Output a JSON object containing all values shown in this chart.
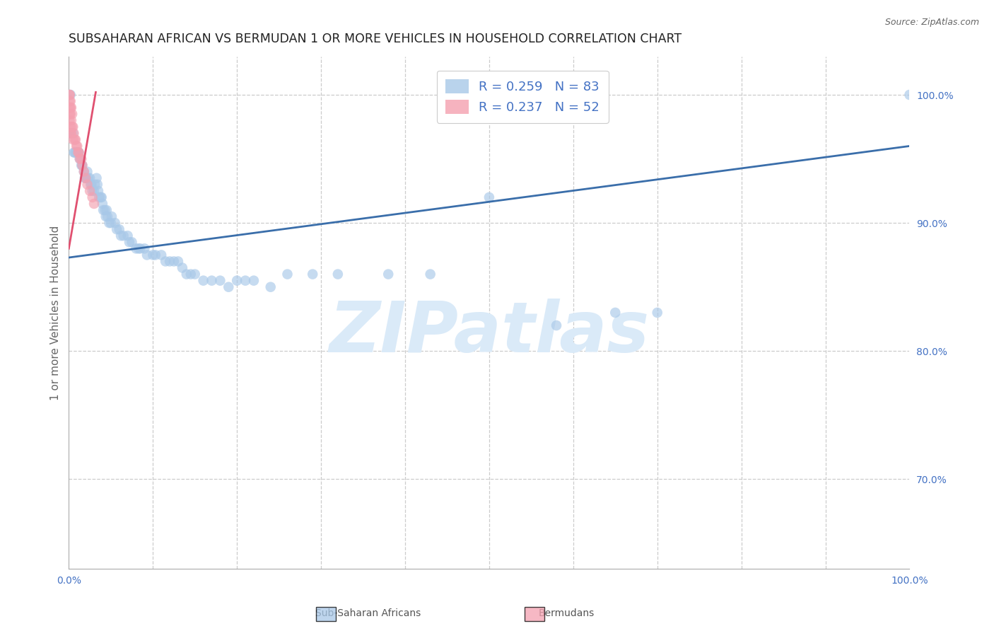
{
  "title": "SUBSAHARAN AFRICAN VS BERMUDAN 1 OR MORE VEHICLES IN HOUSEHOLD CORRELATION CHART",
  "source": "Source: ZipAtlas.com",
  "ylabel": "1 or more Vehicles in Household",
  "xlim": [
    0.0,
    1.0
  ],
  "ylim": [
    0.63,
    1.03
  ],
  "yticks_right": [
    1.0,
    0.9,
    0.8,
    0.7
  ],
  "ytick_labels_right": [
    "100.0%",
    "90.0%",
    "80.0%",
    "70.0%"
  ],
  "legend_R_blue": "R = 0.259",
  "legend_N_blue": "N = 83",
  "legend_R_pink": "R = 0.237",
  "legend_N_pink": "N = 52",
  "legend_label_blue": "Sub-Saharan Africans",
  "legend_label_pink": "Bermudans",
  "blue_color": "#a8c8e8",
  "blue_line_color": "#3a6eaa",
  "pink_color": "#f4a0b0",
  "pink_line_color": "#e05070",
  "blue_scatter_x": [
    0.001,
    0.002,
    0.005,
    0.006,
    0.007,
    0.008,
    0.01,
    0.011,
    0.012,
    0.013,
    0.014,
    0.015,
    0.016,
    0.018,
    0.019,
    0.02,
    0.021,
    0.022,
    0.023,
    0.025,
    0.026,
    0.027,
    0.028,
    0.03,
    0.031,
    0.033,
    0.034,
    0.035,
    0.036,
    0.038,
    0.039,
    0.04,
    0.041,
    0.043,
    0.044,
    0.045,
    0.046,
    0.048,
    0.05,
    0.051,
    0.055,
    0.057,
    0.06,
    0.062,
    0.065,
    0.07,
    0.072,
    0.075,
    0.08,
    0.083,
    0.085,
    0.09,
    0.093,
    0.1,
    0.103,
    0.11,
    0.115,
    0.12,
    0.125,
    0.13,
    0.135,
    0.14,
    0.145,
    0.15,
    0.16,
    0.17,
    0.18,
    0.19,
    0.2,
    0.21,
    0.22,
    0.24,
    0.26,
    0.29,
    0.32,
    0.38,
    0.43,
    0.5,
    0.58,
    0.65,
    0.7,
    1.0
  ],
  "blue_scatter_y": [
    0.97,
    1.0,
    0.97,
    0.955,
    0.955,
    0.955,
    0.955,
    0.955,
    0.955,
    0.95,
    0.95,
    0.945,
    0.945,
    0.94,
    0.935,
    0.935,
    0.935,
    0.94,
    0.935,
    0.935,
    0.93,
    0.93,
    0.925,
    0.925,
    0.93,
    0.935,
    0.93,
    0.925,
    0.92,
    0.92,
    0.92,
    0.915,
    0.91,
    0.91,
    0.905,
    0.91,
    0.905,
    0.9,
    0.9,
    0.905,
    0.9,
    0.895,
    0.895,
    0.89,
    0.89,
    0.89,
    0.885,
    0.885,
    0.88,
    0.88,
    0.88,
    0.88,
    0.875,
    0.875,
    0.875,
    0.875,
    0.87,
    0.87,
    0.87,
    0.87,
    0.865,
    0.86,
    0.86,
    0.86,
    0.855,
    0.855,
    0.855,
    0.85,
    0.855,
    0.855,
    0.855,
    0.85,
    0.86,
    0.86,
    0.86,
    0.86,
    0.86,
    0.92,
    0.82,
    0.83,
    0.83,
    1.0
  ],
  "pink_scatter_x": [
    0.001,
    0.001,
    0.001,
    0.001,
    0.001,
    0.001,
    0.002,
    0.002,
    0.002,
    0.002,
    0.002,
    0.003,
    0.003,
    0.003,
    0.004,
    0.004,
    0.005,
    0.005,
    0.006,
    0.007,
    0.008,
    0.009,
    0.01,
    0.011,
    0.012,
    0.013,
    0.015,
    0.016,
    0.018,
    0.02,
    0.022,
    0.025,
    0.028,
    0.03
  ],
  "pink_scatter_y": [
    1.0,
    1.0,
    0.995,
    0.99,
    0.985,
    0.98,
    0.995,
    0.99,
    0.985,
    0.975,
    0.97,
    0.99,
    0.98,
    0.97,
    0.985,
    0.975,
    0.975,
    0.965,
    0.97,
    0.965,
    0.965,
    0.96,
    0.96,
    0.955,
    0.955,
    0.95,
    0.95,
    0.945,
    0.94,
    0.935,
    0.93,
    0.925,
    0.92,
    0.915
  ],
  "blue_line_x0": 0.0,
  "blue_line_x1": 1.0,
  "blue_line_y0": 0.873,
  "blue_line_y1": 0.96,
  "pink_line_x0": 0.0,
  "pink_line_x1": 0.032,
  "pink_line_y0": 0.88,
  "pink_line_y1": 1.002,
  "background_color": "#ffffff",
  "grid_color": "#cccccc",
  "title_color": "#222222",
  "axis_color": "#666666",
  "tick_color": "#4472c4",
  "watermark_text": "ZIPatlas",
  "watermark_color": "#daeaf8"
}
